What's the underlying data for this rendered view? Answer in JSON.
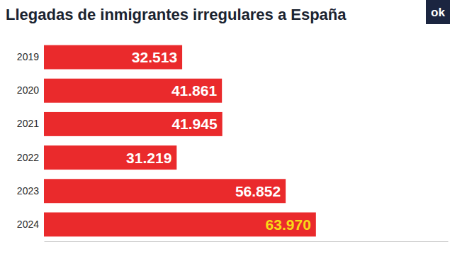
{
  "chart_data": {
    "type": "bar",
    "orientation": "horizontal",
    "title": "Llegadas de inmigrantes irregulares a España",
    "annotations": [
      "ok"
    ],
    "categories": [
      "2019",
      "2020",
      "2021",
      "2022",
      "2023",
      "2024"
    ],
    "values": [
      32513,
      41861,
      41945,
      31219,
      56852,
      63970
    ],
    "value_labels": [
      "32.513",
      "41.861",
      "41.945",
      "31.219",
      "56.852",
      "63.970"
    ],
    "color": "#ea2a2c",
    "xlim": [
      0,
      95000
    ],
    "data_labels": true,
    "tick_labels": "y",
    "grid": false
  }
}
